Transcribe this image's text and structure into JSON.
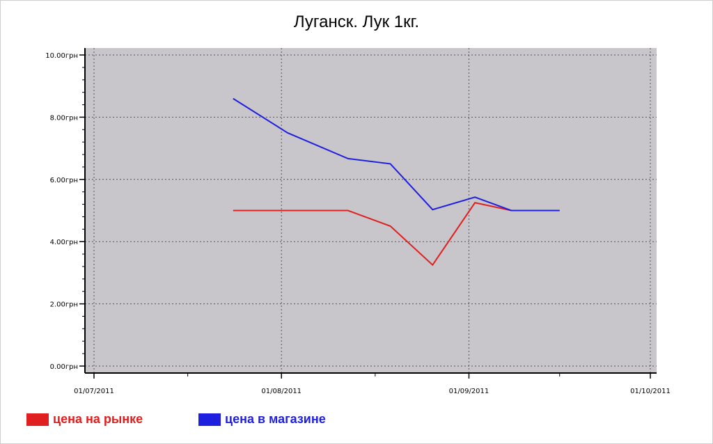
{
  "chart_data": {
    "type": "line",
    "title": "Луганск. Лук 1кг.",
    "xlabel": "",
    "ylabel": "",
    "x_ticks": [
      "01/07/2011",
      "01/08/2011",
      "01/09/2011",
      "01/10/2011"
    ],
    "x_range": [
      "2011-07-01",
      "2011-10-01"
    ],
    "y_ticks": [
      "0.00грн",
      "2.00грн",
      "4.00грн",
      "6.00грн",
      "8.00грн",
      "10.00грн"
    ],
    "ylim": [
      0,
      10
    ],
    "grid": true,
    "legend_position": "bottom-left",
    "series": [
      {
        "name": "цена на рынке",
        "color": "#e02020",
        "x": [
          "2011-07-24",
          "2011-08-02",
          "2011-08-12",
          "2011-08-19",
          "2011-08-26",
          "2011-09-02",
          "2011-09-08",
          "2011-09-16"
        ],
        "values": [
          5.0,
          5.0,
          5.0,
          4.5,
          3.25,
          5.25,
          5.0,
          5.0
        ]
      },
      {
        "name": "цена в магазине",
        "color": "#1f1fe0",
        "x": [
          "2011-07-24",
          "2011-08-02",
          "2011-08-12",
          "2011-08-19",
          "2011-08-26",
          "2011-09-02",
          "2011-09-08",
          "2011-09-16"
        ],
        "values": [
          8.6,
          7.5,
          6.67,
          6.5,
          5.03,
          5.43,
          5.0,
          5.0
        ]
      }
    ]
  }
}
